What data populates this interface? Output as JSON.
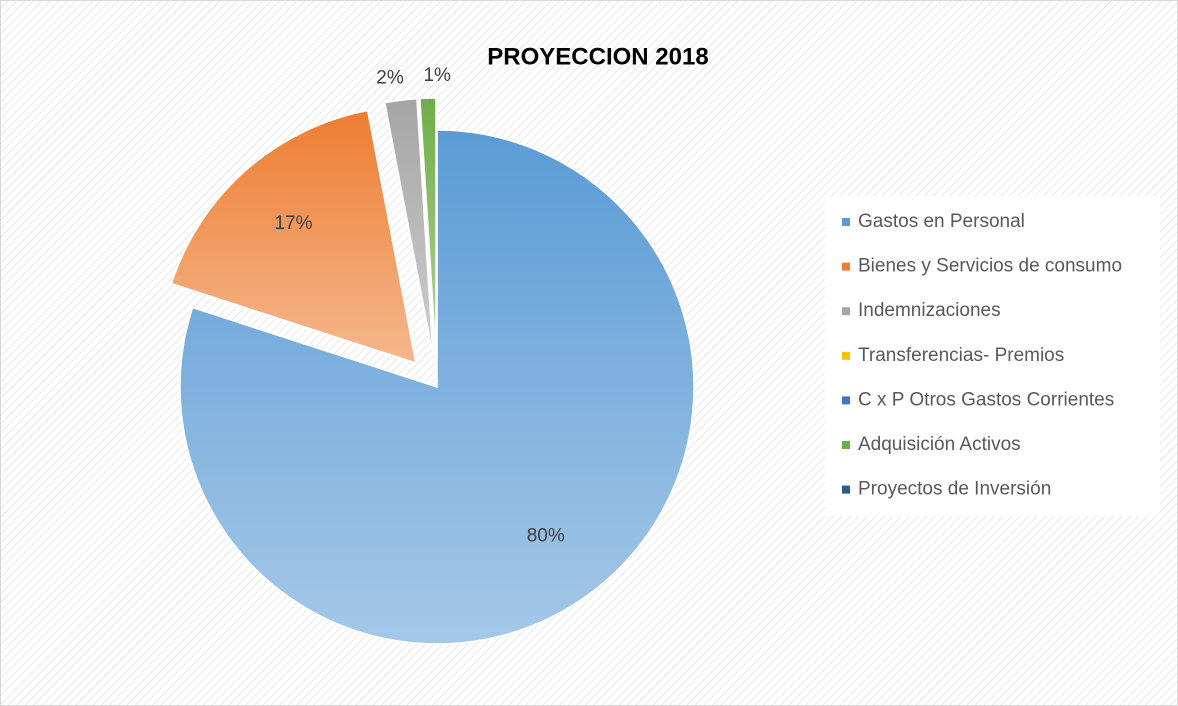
{
  "chart_data": {
    "type": "pie",
    "title": "PROYECCION 2018",
    "categories": [
      "Gastos en Personal",
      "Bienes y Servicios de consumo",
      "Indemnizaciones",
      "Transferencias- Premios",
      "C x P Otros Gastos Corrientes",
      "Adquisición Activos",
      "Proyectos de Inversión"
    ],
    "values": [
      80,
      17,
      2,
      0,
      0,
      1,
      0
    ],
    "colors": [
      "#5b9bd5",
      "#ed7d31",
      "#a5a5a5",
      "#ffc000",
      "#4472c4",
      "#70ad47",
      "#255e91"
    ],
    "legend": "right"
  }
}
